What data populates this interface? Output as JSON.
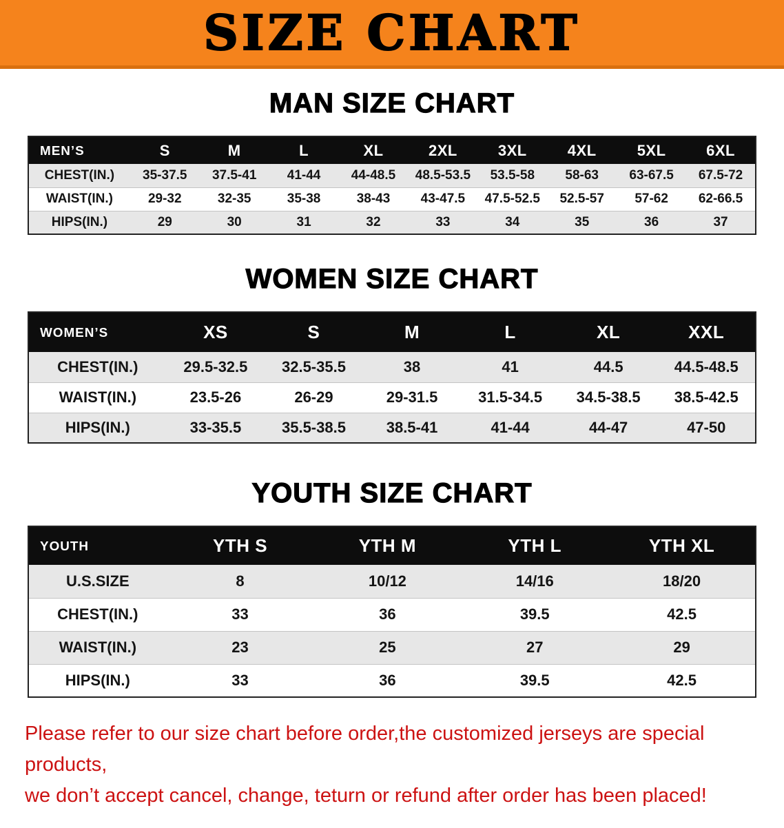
{
  "colors": {
    "banner_bg": "#f5831c",
    "banner_edge": "#d9700e",
    "table_header_bar": "#0d0d0d",
    "row_shade": "#e7e7e7",
    "disclaimer_red": "#cc1212"
  },
  "banner": {
    "title": "SIZE CHART"
  },
  "men": {
    "heading": "MAN SIZE CHART",
    "table": {
      "header": [
        "MEN’S",
        "S",
        "M",
        "L",
        "XL",
        "2XL",
        "3XL",
        "4XL",
        "5XL",
        "6XL"
      ],
      "rows": [
        {
          "label": "CHEST(IN.)",
          "values": [
            "35-37.5",
            "37.5-41",
            "41-44",
            "44-48.5",
            "48.5-53.5",
            "53.5-58",
            "58-63",
            "63-67.5",
            "67.5-72"
          ]
        },
        {
          "label": "WAIST(IN.)",
          "values": [
            "29-32",
            "32-35",
            "35-38",
            "38-43",
            "43-47.5",
            "47.5-52.5",
            "52.5-57",
            "57-62",
            "62-66.5"
          ]
        },
        {
          "label": "HIPS(IN.)",
          "values": [
            "29",
            "30",
            "31",
            "32",
            "33",
            "34",
            "35",
            "36",
            "37"
          ]
        }
      ]
    }
  },
  "women": {
    "heading": "WOMEN SIZE CHART",
    "table": {
      "header": [
        "WOMEN’S",
        "XS",
        "S",
        "M",
        "L",
        "XL",
        "XXL"
      ],
      "rows": [
        {
          "label": "CHEST(IN.)",
          "values": [
            "29.5-32.5",
            "32.5-35.5",
            "38",
            "41",
            "44.5",
            "44.5-48.5"
          ]
        },
        {
          "label": "WAIST(IN.)",
          "values": [
            "23.5-26",
            "26-29",
            "29-31.5",
            "31.5-34.5",
            "34.5-38.5",
            "38.5-42.5"
          ]
        },
        {
          "label": "HIPS(IN.)",
          "values": [
            "33-35.5",
            "35.5-38.5",
            "38.5-41",
            "41-44",
            "44-47",
            "47-50"
          ]
        }
      ]
    }
  },
  "youth": {
    "heading": "YOUTH SIZE CHART",
    "table": {
      "header": [
        "YOUTH",
        "YTH S",
        "YTH M",
        "YTH L",
        "YTH XL"
      ],
      "rows": [
        {
          "label": "U.S.SIZE",
          "values": [
            "8",
            "10/12",
            "14/16",
            "18/20"
          ]
        },
        {
          "label": "CHEST(IN.)",
          "values": [
            "33",
            "36",
            "39.5",
            "42.5"
          ]
        },
        {
          "label": "WAIST(IN.)",
          "values": [
            "23",
            "25",
            "27",
            "29"
          ]
        },
        {
          "label": "HIPS(IN.)",
          "values": [
            "33",
            "36",
            "39.5",
            "42.5"
          ]
        }
      ]
    }
  },
  "disclaimer": {
    "line1": "Please refer to our size chart before order,the customized jerseys are special products,",
    "line2": "we don’t accept cancel, change, teturn or refund after order has been placed!"
  }
}
